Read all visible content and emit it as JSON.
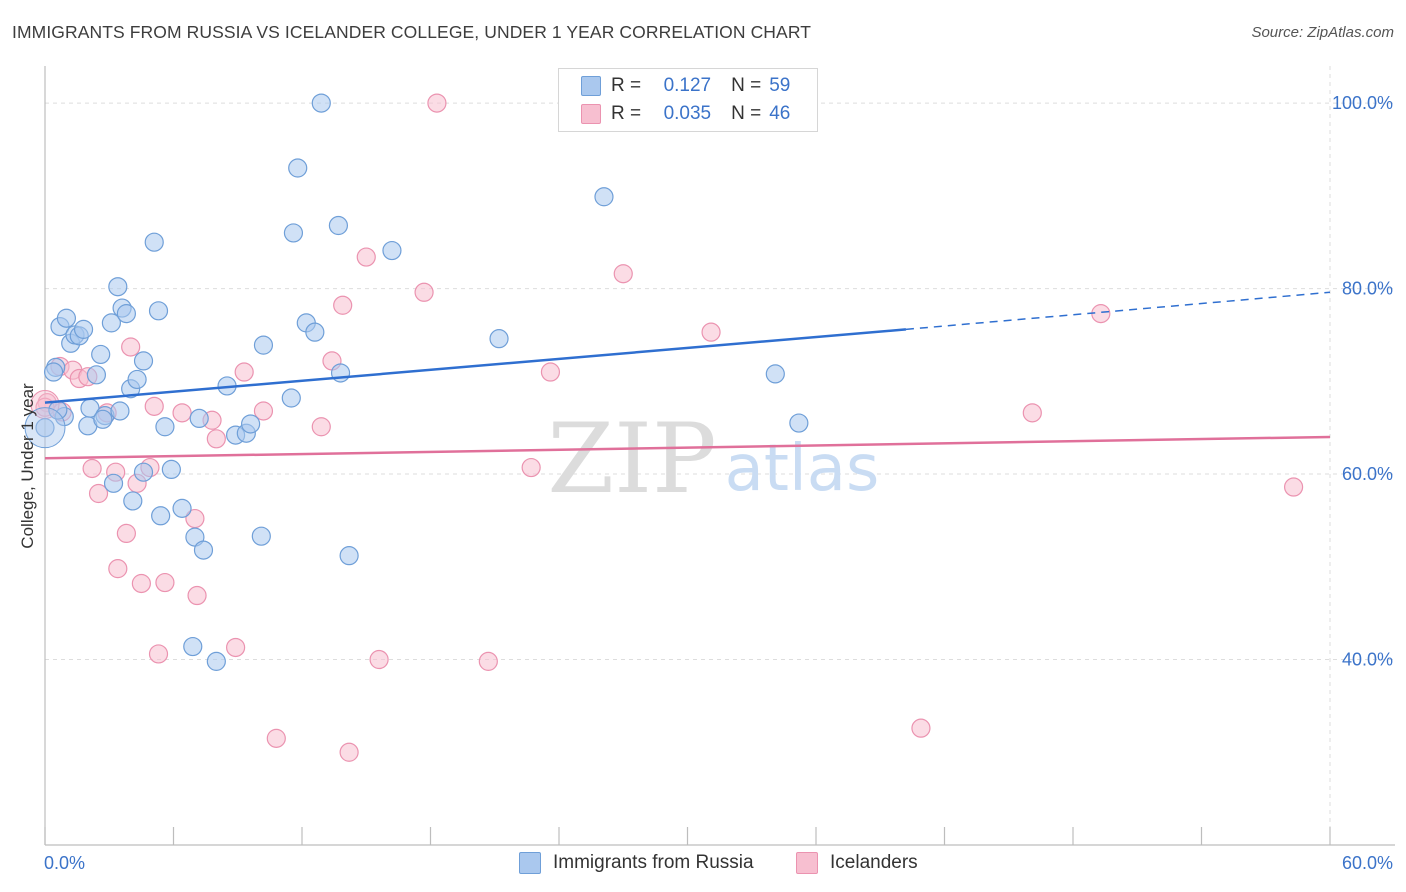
{
  "header": {
    "title": "IMMIGRANTS FROM RUSSIA VS ICELANDER COLLEGE, UNDER 1 YEAR CORRELATION CHART",
    "source": "Source: ZipAtlas.com"
  },
  "legend": {
    "series1": {
      "r_label": "R =",
      "r_value": "0.127",
      "n_label": "N =",
      "n_value": "59"
    },
    "series2": {
      "r_label": "R =",
      "r_value": "0.035",
      "n_label": "N =",
      "n_value": "46"
    }
  },
  "bottom_legend": {
    "series1": "Immigrants from Russia",
    "series2": "Icelanders"
  },
  "colors": {
    "blue_fill": "#aac8ee",
    "blue_stroke": "#6f9fd8",
    "blue_line": "#2f6fd0",
    "pink_fill": "#f7bfd0",
    "pink_stroke": "#eb93b0",
    "pink_line": "#e0709a",
    "axis_text": "#3b73c9",
    "grid": "#dddddd"
  },
  "watermark": {
    "zip": "ZIP",
    "atlas": "atlas"
  },
  "chart_data": {
    "type": "scatter",
    "title": "IMMIGRANTS FROM RUSSIA VS ICELANDER COLLEGE, UNDER 1 YEAR CORRELATION CHART",
    "xlabel": "",
    "ylabel": "College, Under 1 year",
    "xlim": [
      0,
      60
    ],
    "ylim": [
      20,
      104
    ],
    "x_tick_labels": [
      "0.0%",
      "60.0%"
    ],
    "y_ticks": [
      40,
      60,
      80,
      100
    ],
    "y_tick_labels": [
      "40.0%",
      "60.0%",
      "80.0%",
      "100.0%"
    ],
    "grid": true,
    "series": [
      {
        "name": "Immigrants from Russia",
        "color": "blue",
        "R": 0.127,
        "N": 59,
        "trend": {
          "x0": 0,
          "y0": 67.7,
          "x1": 40.2,
          "y1": 75.6,
          "dash_x1": 60,
          "dash_y1": 79.6
        },
        "points": [
          [
            0.0,
            65.0
          ],
          [
            0.5,
            71.5
          ],
          [
            0.7,
            75.9
          ],
          [
            0.9,
            66.2
          ],
          [
            1.0,
            76.8
          ],
          [
            1.2,
            74.1
          ],
          [
            1.4,
            75.0
          ],
          [
            1.6,
            74.9
          ],
          [
            2.0,
            65.2
          ],
          [
            2.1,
            67.1
          ],
          [
            2.4,
            70.7
          ],
          [
            2.6,
            72.9
          ],
          [
            2.8,
            66.3
          ],
          [
            3.1,
            76.3
          ],
          [
            3.2,
            59.0
          ],
          [
            3.4,
            80.2
          ],
          [
            3.6,
            77.9
          ],
          [
            3.8,
            77.3
          ],
          [
            4.0,
            69.2
          ],
          [
            4.1,
            57.1
          ],
          [
            4.3,
            70.2
          ],
          [
            4.6,
            72.2
          ],
          [
            4.6,
            60.2
          ],
          [
            5.1,
            85.0
          ],
          [
            5.3,
            77.6
          ],
          [
            5.4,
            55.5
          ],
          [
            5.6,
            65.1
          ],
          [
            5.9,
            60.5
          ],
          [
            6.4,
            56.3
          ],
          [
            6.9,
            41.4
          ],
          [
            7.0,
            53.2
          ],
          [
            7.4,
            51.8
          ],
          [
            8.0,
            39.8
          ],
          [
            8.5,
            69.5
          ],
          [
            8.9,
            64.2
          ],
          [
            9.4,
            64.4
          ],
          [
            9.6,
            65.4
          ],
          [
            10.1,
            53.3
          ],
          [
            10.2,
            73.9
          ],
          [
            11.5,
            68.2
          ],
          [
            11.6,
            86.0
          ],
          [
            11.8,
            93.0
          ],
          [
            12.2,
            76.3
          ],
          [
            12.6,
            75.3
          ],
          [
            12.9,
            100.0
          ],
          [
            13.7,
            86.8
          ],
          [
            13.8,
            70.9
          ],
          [
            14.2,
            51.2
          ],
          [
            16.2,
            84.1
          ],
          [
            21.2,
            74.6
          ],
          [
            26.1,
            89.9
          ],
          [
            34.1,
            70.8
          ],
          [
            35.2,
            65.5
          ],
          [
            0.4,
            71.0
          ],
          [
            3.5,
            66.8
          ],
          [
            1.8,
            75.6
          ],
          [
            0.6,
            66.9
          ],
          [
            7.2,
            66.0
          ],
          [
            2.7,
            65.9
          ]
        ]
      },
      {
        "name": "Icelanders",
        "color": "pink",
        "R": 0.035,
        "N": 46,
        "trend": {
          "x0": 0,
          "y0": 61.7,
          "x1": 60,
          "y1": 64.0
        },
        "points": [
          [
            0.1,
            67.7
          ],
          [
            0.7,
            71.6
          ],
          [
            0.8,
            66.7
          ],
          [
            1.3,
            71.2
          ],
          [
            1.6,
            70.3
          ],
          [
            2.0,
            70.5
          ],
          [
            2.2,
            60.6
          ],
          [
            2.5,
            57.9
          ],
          [
            2.9,
            66.6
          ],
          [
            3.3,
            60.2
          ],
          [
            3.4,
            49.8
          ],
          [
            3.8,
            53.6
          ],
          [
            4.0,
            73.7
          ],
          [
            4.3,
            59.0
          ],
          [
            4.5,
            48.2
          ],
          [
            4.9,
            60.7
          ],
          [
            5.1,
            67.3
          ],
          [
            5.3,
            40.6
          ],
          [
            5.6,
            48.3
          ],
          [
            6.4,
            66.6
          ],
          [
            7.0,
            55.2
          ],
          [
            7.1,
            46.9
          ],
          [
            7.8,
            65.8
          ],
          [
            8.0,
            63.8
          ],
          [
            8.9,
            41.3
          ],
          [
            9.3,
            71.0
          ],
          [
            10.2,
            66.8
          ],
          [
            10.8,
            31.5
          ],
          [
            12.9,
            65.1
          ],
          [
            13.4,
            72.2
          ],
          [
            13.9,
            78.2
          ],
          [
            14.2,
            30.0
          ],
          [
            15.0,
            83.4
          ],
          [
            15.6,
            40.0
          ],
          [
            17.7,
            79.6
          ],
          [
            18.3,
            100.0
          ],
          [
            20.7,
            39.8
          ],
          [
            22.7,
            60.7
          ],
          [
            23.6,
            71.0
          ],
          [
            27.0,
            81.6
          ],
          [
            31.1,
            75.3
          ],
          [
            40.9,
            32.6
          ],
          [
            46.1,
            66.6
          ],
          [
            49.3,
            77.3
          ],
          [
            58.3,
            58.6
          ],
          [
            0.0,
            67.2
          ]
        ]
      }
    ]
  }
}
